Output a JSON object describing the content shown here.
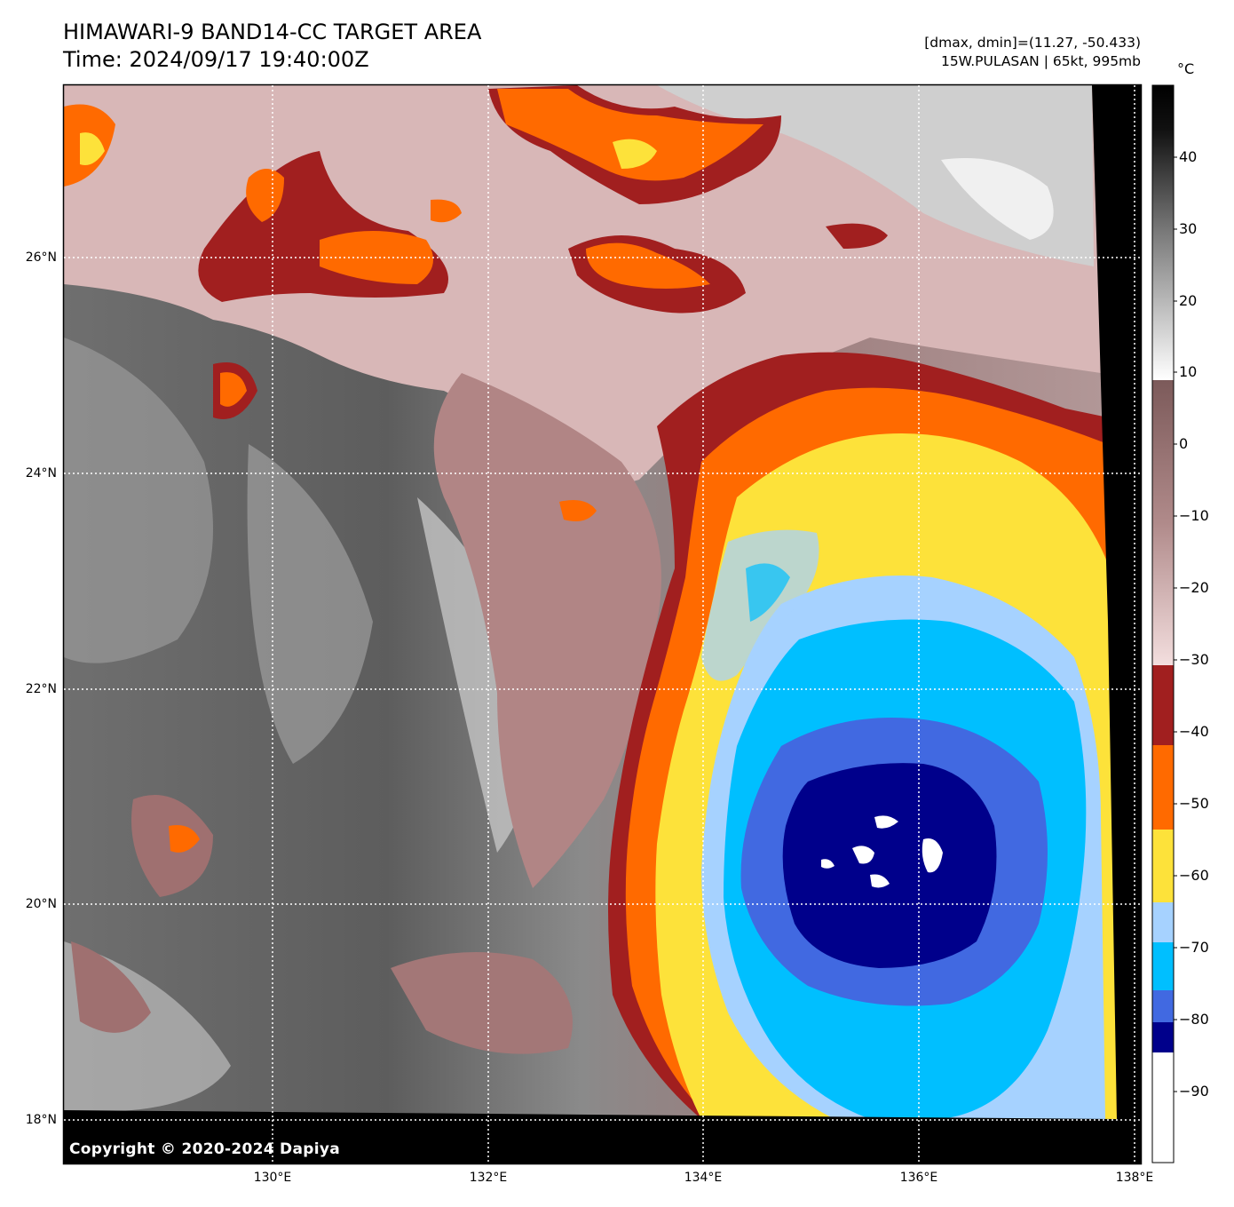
{
  "title_line1": "HIMAWARI-9 BAND14-CC TARGET AREA",
  "title_line2": "Time: 2024/09/17 19:40:00Z",
  "info_line1": "[dmax, dmin]=(11.27, -50.433)",
  "info_line2": "15W.PULASAN | 65kt, 995mb",
  "copyright": "Copyright © 2020-2024 Dapiya",
  "lat_labels": [
    "26°N",
    "24°N",
    "22°N",
    "20°N",
    "18°N"
  ],
  "lon_labels": [
    "130°E",
    "132°E",
    "134°E",
    "136°E",
    "138°E"
  ],
  "colorbar": {
    "unit": "°C",
    "ticks": [
      "40",
      "30",
      "20",
      "10",
      "0",
      "−10",
      "−20",
      "−30",
      "−40",
      "−50",
      "−60",
      "−70",
      "−80",
      "−90"
    ],
    "colors": {
      "below_minus85": "#ffffff",
      "minus85_to_minus80": "#00008b",
      "minus80_to_minus75": "#4169e1",
      "minus75_to_minus65": "#00bfff",
      "minus65_to_minus55": "#a6d2ff",
      "minus55_to_minus45": "#fde23a",
      "minus45_to_minus35": "#ff6a00",
      "minus35_to_minus30": "#a11f1f",
      "minus30_to_0": "#f3d9d9 to #8a6060",
      "warm_gray": "#ffffff to #000000"
    }
  }
}
